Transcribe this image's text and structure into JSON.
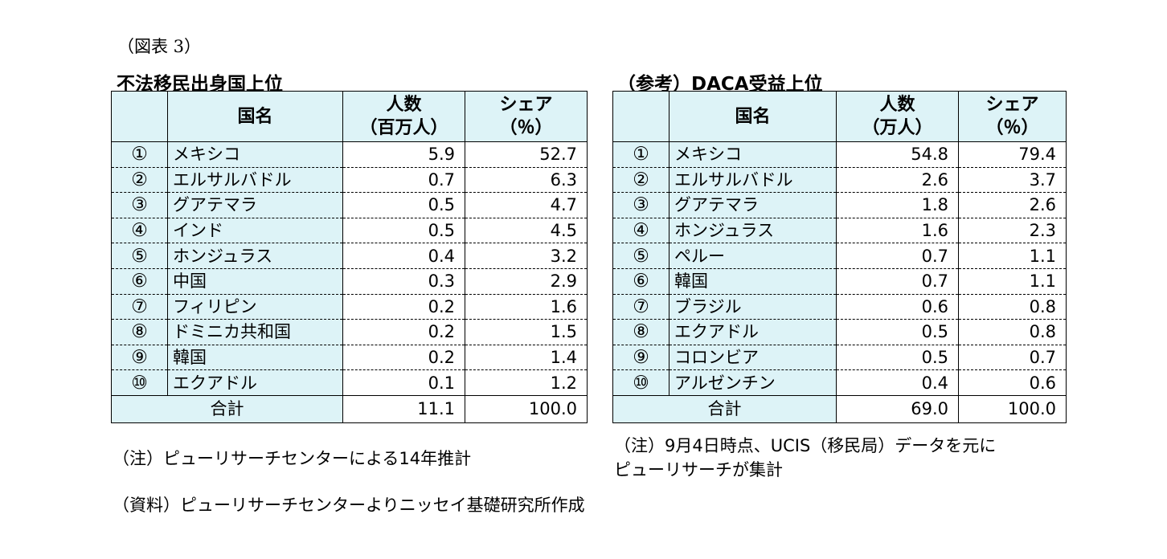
{
  "figure_label": "（図表 3）",
  "chart_data": [
    {
      "type": "table",
      "title": "不法移民出身国上位",
      "columns": [
        "",
        "国名",
        "人数\n（百万人）",
        "シェア\n（％）"
      ],
      "header": {
        "country": "国名",
        "count_line1": "人数",
        "count_line2": "（百万人）",
        "share_line1": "シェア",
        "share_line2": "（％）"
      },
      "rows": [
        {
          "rank": "①",
          "country": "メキシコ",
          "count": "5.9",
          "share": "52.7"
        },
        {
          "rank": "②",
          "country": "エルサルバドル",
          "count": "0.7",
          "share": "6.3"
        },
        {
          "rank": "③",
          "country": "グアテマラ",
          "count": "0.5",
          "share": "4.7"
        },
        {
          "rank": "④",
          "country": "インド",
          "count": "0.5",
          "share": "4.5"
        },
        {
          "rank": "⑤",
          "country": "ホンジュラス",
          "count": "0.4",
          "share": "3.2"
        },
        {
          "rank": "⑥",
          "country": "中国",
          "count": "0.3",
          "share": "2.9"
        },
        {
          "rank": "⑦",
          "country": "フィリピン",
          "count": "0.2",
          "share": "1.6"
        },
        {
          "rank": "⑧",
          "country": "ドミニカ共和国",
          "count": "0.2",
          "share": "1.5"
        },
        {
          "rank": "⑨",
          "country": "韓国",
          "count": "0.2",
          "share": "1.4"
        },
        {
          "rank": "⑩",
          "country": "エクアドル",
          "count": "0.1",
          "share": "1.2"
        }
      ],
      "total": {
        "label": "合計",
        "count": "11.1",
        "share": "100.0"
      }
    },
    {
      "type": "table",
      "title": "（参考）DACA受益上位",
      "columns": [
        "",
        "国名",
        "人数\n（万人）",
        "シェア\n（％）"
      ],
      "header": {
        "country": "国名",
        "count_line1": "人数",
        "count_line2": "（万人）",
        "share_line1": "シェア",
        "share_line2": "（％）"
      },
      "rows": [
        {
          "rank": "①",
          "country": "メキシコ",
          "count": "54.8",
          "share": "79.4"
        },
        {
          "rank": "②",
          "country": "エルサルバドル",
          "count": "2.6",
          "share": "3.7"
        },
        {
          "rank": "③",
          "country": "グアテマラ",
          "count": "1.8",
          "share": "2.6"
        },
        {
          "rank": "④",
          "country": "ホンジュラス",
          "count": "1.6",
          "share": "2.3"
        },
        {
          "rank": "⑤",
          "country": "ペルー",
          "count": "0.7",
          "share": "1.1"
        },
        {
          "rank": "⑥",
          "country": "韓国",
          "count": "0.7",
          "share": "1.1"
        },
        {
          "rank": "⑦",
          "country": "ブラジル",
          "count": "0.6",
          "share": "0.8"
        },
        {
          "rank": "⑧",
          "country": "エクアドル",
          "count": "0.5",
          "share": "0.8"
        },
        {
          "rank": "⑨",
          "country": "コロンビア",
          "count": "0.5",
          "share": "0.7"
        },
        {
          "rank": "⑩",
          "country": "アルゼンチン",
          "count": "0.4",
          "share": "0.6"
        }
      ],
      "total": {
        "label": "合計",
        "count": "69.0",
        "share": "100.0"
      }
    }
  ],
  "notes": {
    "left_note": "（注）ピューリサーチセンターによる14年推計",
    "right_note_line1": "（注）9月4日時点、UCIS（移民局）データを元に",
    "right_note_line2": "ピューリサーチが集計",
    "source": "（資料）ピューリサーチセンターよりニッセイ基礎研究所作成"
  },
  "colors": {
    "header_fill": "#ddf3f7",
    "border": "#000000"
  }
}
